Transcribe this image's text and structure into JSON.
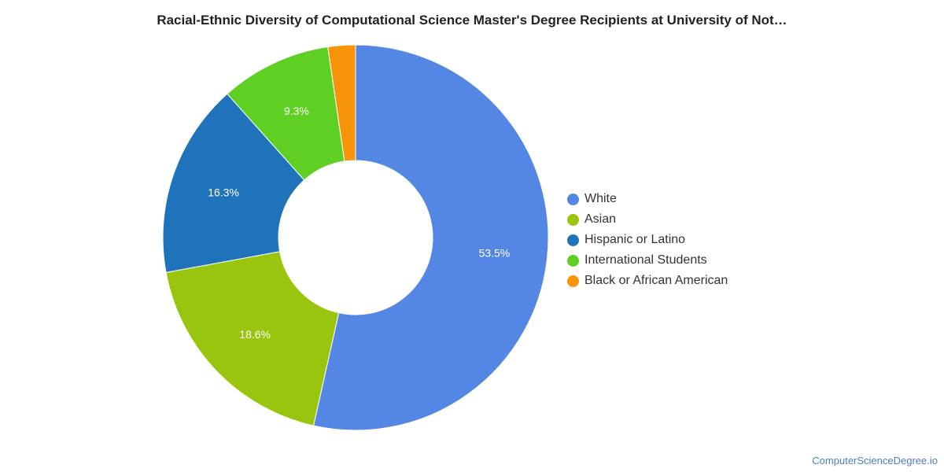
{
  "chart_data": {
    "type": "pie",
    "title": "Racial-Ethnic Diversity of Computational Science Master's Degree Recipients at University of Not…",
    "donut": true,
    "legend_position": "right",
    "categories": [
      "White",
      "Asian",
      "Hispanic or Latino",
      "International Students",
      "Black or African American"
    ],
    "values": [
      53.5,
      18.6,
      16.3,
      9.3,
      2.3
    ],
    "data_labels": [
      "53.5%",
      "18.6%",
      "16.3%",
      "9.3%",
      ""
    ],
    "colors": [
      "#5387e3",
      "#99c50e",
      "#1f73ba",
      "#5fcf24",
      "#f7940a"
    ]
  },
  "watermark": "ComputerScienceDegree.io"
}
